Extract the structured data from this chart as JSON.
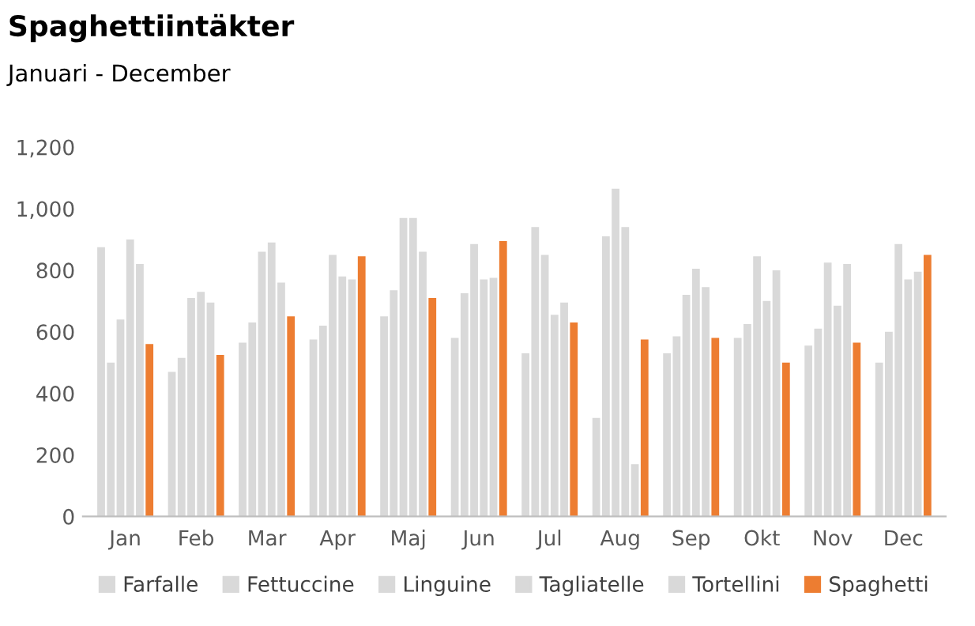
{
  "chart_data": {
    "type": "bar",
    "title": "Spaghettiintäkter",
    "subtitle": "Januari - December",
    "categories": [
      "Jan",
      "Feb",
      "Mar",
      "Apr",
      "Maj",
      "Jun",
      "Jul",
      "Aug",
      "Sep",
      "Okt",
      "Nov",
      "Dec"
    ],
    "series": [
      {
        "name": "Farfalle",
        "color": "#d9d9d9",
        "values": [
          875,
          470,
          565,
          575,
          650,
          580,
          530,
          320,
          530,
          580,
          555,
          500
        ]
      },
      {
        "name": "Fettuccine",
        "color": "#d9d9d9",
        "values": [
          500,
          515,
          630,
          620,
          735,
          725,
          940,
          910,
          585,
          625,
          610,
          600
        ]
      },
      {
        "name": "Linguine",
        "color": "#d9d9d9",
        "values": [
          640,
          710,
          860,
          850,
          970,
          885,
          850,
          1065,
          720,
          845,
          825,
          885
        ]
      },
      {
        "name": "Tagliatelle",
        "color": "#d9d9d9",
        "values": [
          900,
          730,
          890,
          780,
          970,
          770,
          655,
          940,
          805,
          700,
          685,
          770
        ]
      },
      {
        "name": "Tortellini",
        "color": "#d9d9d9",
        "values": [
          820,
          695,
          760,
          770,
          860,
          775,
          695,
          170,
          745,
          800,
          820,
          795
        ]
      },
      {
        "name": "Spaghetti",
        "color": "#ed7d31",
        "values": [
          560,
          525,
          650,
          845,
          710,
          895,
          630,
          575,
          580,
          500,
          565,
          850
        ]
      }
    ],
    "ylim": [
      0,
      1200
    ],
    "yticks": [
      {
        "value": 0,
        "label": "0"
      },
      {
        "value": 200,
        "label": "200"
      },
      {
        "value": 400,
        "label": "400"
      },
      {
        "value": 600,
        "label": "600"
      },
      {
        "value": 800,
        "label": "800"
      },
      {
        "value": 1000,
        "label": "1,000"
      },
      {
        "value": 1200,
        "label": "1,200"
      }
    ],
    "grid": false,
    "legend": "bottom"
  }
}
